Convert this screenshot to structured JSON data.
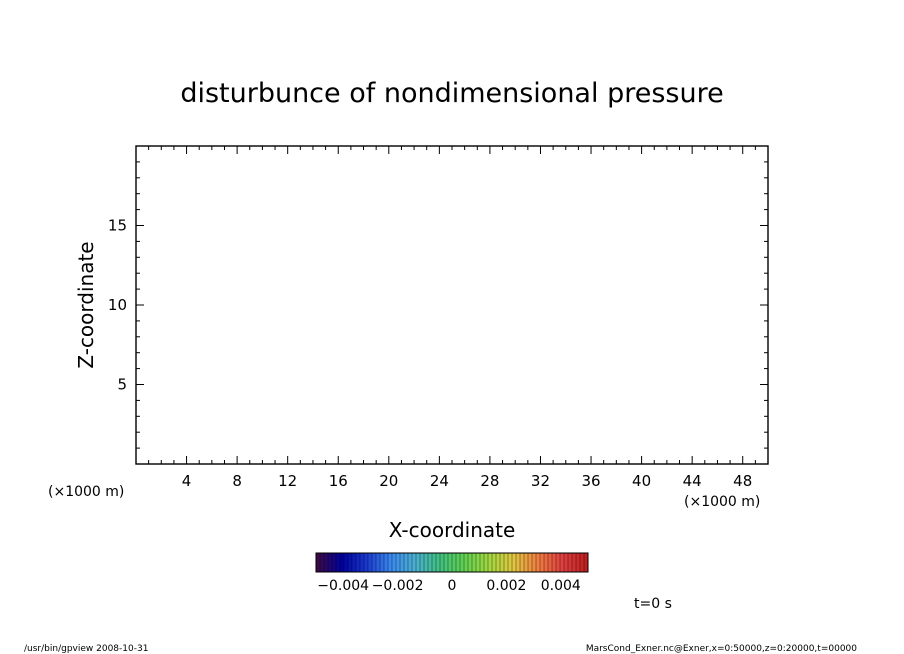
{
  "chart_data": {
    "type": "heatmap",
    "title": "disturbunce of nondimensional pressure",
    "xlabel": "X-coordinate",
    "ylabel": "Z-coordinate",
    "x_unit_label": "(×1000 m)",
    "y_unit_label": "(×1000 m)",
    "xlim": [
      0,
      50
    ],
    "ylim": [
      0,
      20
    ],
    "x_ticks": [
      "4",
      "8",
      "12",
      "16",
      "20",
      "24",
      "28",
      "32",
      "36",
      "40",
      "44",
      "48"
    ],
    "y_ticks": [
      "5",
      "10",
      "15"
    ],
    "values": [],
    "colorbar": {
      "range": [
        -0.005,
        0.005
      ],
      "tick_labels": [
        "−0.004",
        "−0.002",
        "0",
        "0.002",
        "0.004"
      ],
      "colors": [
        "#3a0a4a",
        "#0000a0",
        "#1a3ad0",
        "#3a8af0",
        "#4ab0d0",
        "#40c080",
        "#60d050",
        "#a0d840",
        "#e0c840",
        "#f08040",
        "#e04040",
        "#c02020"
      ]
    },
    "time_label": "t=0 s",
    "grid": false
  },
  "footer": {
    "left": "/usr/bin/gpview   2008-10-31",
    "right": "MarsCond_Exner.nc@Exner,x=0:50000,z=0:20000,t=00000"
  }
}
